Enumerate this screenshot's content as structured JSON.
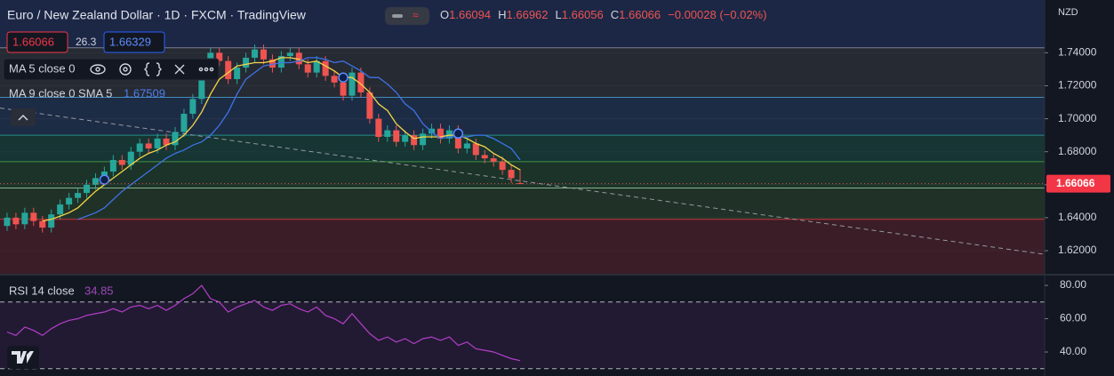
{
  "currency": "NZD",
  "toolbar": {
    "spread": 26.3,
    "ask": 1.66329
  },
  "chart_data": [
    {
      "type": "candlestick",
      "title": "Euro / New Zealand Dollar · 1D · FXCM · TradingView",
      "ohlc_labels": [
        "O",
        "H",
        "L",
        "C"
      ],
      "change": "−0.00028 (−0.02%)",
      "open": [
        1.635,
        1.64,
        1.636,
        1.643,
        1.638,
        1.634,
        1.642,
        1.648,
        1.652,
        1.655,
        1.66,
        1.664,
        1.668,
        1.675,
        1.672,
        1.68,
        1.685,
        1.682,
        1.688,
        1.684,
        1.692,
        1.703,
        1.712,
        1.728,
        1.74,
        1.735,
        1.724,
        1.731,
        1.737,
        1.742,
        1.736,
        1.731,
        1.738,
        1.74,
        1.733,
        1.728,
        1.735,
        1.726,
        1.722,
        1.714,
        1.728,
        1.716,
        1.7,
        1.689,
        1.693,
        1.686,
        1.69,
        1.684,
        1.691,
        1.694,
        1.688,
        1.693,
        1.682,
        1.685,
        1.678,
        1.676,
        1.674,
        1.669,
        1.66094
      ],
      "high": [
        1.643,
        1.643,
        1.646,
        1.646,
        1.641,
        1.645,
        1.651,
        1.655,
        1.658,
        1.663,
        1.667,
        1.671,
        1.678,
        1.678,
        1.683,
        1.688,
        1.688,
        1.691,
        1.691,
        1.695,
        1.706,
        1.715,
        1.731,
        1.743,
        1.743,
        1.738,
        1.734,
        1.74,
        1.745,
        1.745,
        1.739,
        1.741,
        1.743,
        1.743,
        1.736,
        1.738,
        1.738,
        1.729,
        1.725,
        1.731,
        1.731,
        1.719,
        1.703,
        1.696,
        1.696,
        1.693,
        1.693,
        1.694,
        1.697,
        1.697,
        1.696,
        1.696,
        1.688,
        1.688,
        1.681,
        1.679,
        1.677,
        1.672,
        1.66962
      ],
      "low": [
        1.632,
        1.633,
        1.633,
        1.635,
        1.631,
        1.631,
        1.639,
        1.645,
        1.649,
        1.652,
        1.657,
        1.661,
        1.665,
        1.669,
        1.669,
        1.677,
        1.679,
        1.679,
        1.681,
        1.681,
        1.689,
        1.7,
        1.709,
        1.725,
        1.732,
        1.721,
        1.721,
        1.728,
        1.734,
        1.733,
        1.728,
        1.728,
        1.735,
        1.73,
        1.725,
        1.725,
        1.723,
        1.719,
        1.711,
        1.711,
        1.713,
        1.697,
        1.686,
        1.686,
        1.683,
        1.683,
        1.681,
        1.681,
        1.688,
        1.685,
        1.685,
        1.679,
        1.679,
        1.675,
        1.673,
        1.671,
        1.666,
        1.661,
        1.66056
      ],
      "close": [
        1.64,
        1.636,
        1.643,
        1.638,
        1.634,
        1.642,
        1.648,
        1.652,
        1.655,
        1.66,
        1.664,
        1.668,
        1.675,
        1.672,
        1.68,
        1.685,
        1.682,
        1.688,
        1.684,
        1.692,
        1.703,
        1.712,
        1.728,
        1.74,
        1.735,
        1.724,
        1.731,
        1.737,
        1.742,
        1.736,
        1.731,
        1.738,
        1.74,
        1.733,
        1.728,
        1.735,
        1.726,
        1.722,
        1.714,
        1.728,
        1.716,
        1.7,
        1.689,
        1.693,
        1.686,
        1.69,
        1.684,
        1.691,
        1.694,
        1.688,
        1.693,
        1.682,
        1.685,
        1.678,
        1.676,
        1.674,
        1.669,
        1.664,
        1.66066
      ],
      "up_color": "#26a69a",
      "down_color": "#ef5350",
      "series": [
        {
          "name": "MA 5 close 0",
          "color": "#f5d547",
          "values": [
            null,
            null,
            null,
            null,
            1.638,
            1.639,
            1.641,
            1.643,
            1.646,
            1.651,
            1.656,
            1.66,
            1.664,
            1.668,
            1.672,
            1.676,
            1.679,
            1.681,
            1.684,
            1.686,
            1.69,
            1.696,
            1.704,
            1.715,
            1.724,
            1.728,
            1.732,
            1.733,
            1.734,
            1.734,
            1.735,
            1.737,
            1.737,
            1.736,
            1.734,
            1.735,
            1.732,
            1.729,
            1.725,
            1.725,
            1.721,
            1.716,
            1.709,
            1.705,
            1.697,
            1.692,
            1.688,
            1.689,
            1.689,
            1.689,
            1.69,
            1.69,
            1.688,
            1.685,
            1.683,
            1.679,
            1.676,
            1.672,
            1.669
          ]
        },
        {
          "name": "MA 9 close 0 SMA 5",
          "color": "#3d73e6",
          "values": [
            null,
            null,
            null,
            null,
            null,
            null,
            null,
            null,
            1.639,
            1.641,
            1.643,
            1.646,
            1.651,
            1.656,
            1.66,
            1.664,
            1.668,
            1.672,
            1.676,
            1.679,
            1.681,
            1.684,
            1.686,
            1.69,
            1.696,
            1.704,
            1.715,
            1.724,
            1.728,
            1.732,
            1.733,
            1.734,
            1.734,
            1.735,
            1.737,
            1.737,
            1.736,
            1.734,
            1.735,
            1.732,
            1.729,
            1.725,
            1.725,
            1.721,
            1.716,
            1.709,
            1.705,
            1.697,
            1.692,
            1.688,
            1.689,
            1.689,
            1.689,
            1.69,
            1.69,
            1.688,
            1.685,
            1.682,
            1.67509
          ]
        }
      ],
      "markers": {
        "x": [
          11,
          38,
          51
        ],
        "values": [
          1.663,
          1.725,
          1.691
        ]
      },
      "trendline": {
        "x": [
          -0.8,
          117.3
        ],
        "values": [
          1.7065,
          1.6178
        ]
      },
      "levels": [
        {
          "value": 1.743,
          "color": "#9598a1"
        },
        {
          "value": 1.713,
          "color": "#4fa3d8"
        },
        {
          "value": 1.69,
          "color": "#26a69a"
        },
        {
          "value": 1.674,
          "color": "#4caf50"
        },
        {
          "value": 1.658,
          "color": "#a5d6a7"
        },
        {
          "value": 1.639,
          "color": "#f23645"
        }
      ],
      "band_colors": [
        "#1c2746",
        "#262a33",
        "#1d2c45",
        "#163533",
        "#1b3329",
        "#203227",
        "#3a1d27"
      ],
      "xlim": [
        -0.8,
        117.3
      ],
      "ylim": [
        1.606,
        1.772
      ],
      "yticks": [
        {
          "value": 1.74,
          "label": "1.74000"
        },
        {
          "value": 1.72,
          "label": "1.72000"
        },
        {
          "value": 1.7,
          "label": "1.70000"
        },
        {
          "value": 1.68,
          "label": "1.68000"
        },
        {
          "value": 1.66,
          "label": "1.66000"
        },
        {
          "value": 1.64,
          "label": "1.64000"
        },
        {
          "value": 1.62,
          "label": "1.62000"
        }
      ]
    },
    {
      "type": "line",
      "series": [
        {
          "name": "RSI 14 close",
          "color": "#b23fc7",
          "values": [
            52,
            50,
            55,
            53,
            50,
            54,
            57,
            59,
            60,
            62,
            63,
            64,
            66,
            64,
            67,
            68,
            66,
            68,
            65,
            68,
            72,
            75,
            80,
            72,
            70,
            64,
            67,
            69,
            71,
            67,
            65,
            68,
            69,
            66,
            64,
            67,
            62,
            60,
            57,
            63,
            57,
            51,
            47,
            49,
            46,
            48,
            45,
            48,
            49,
            47,
            49,
            44,
            46,
            42,
            41,
            40,
            38,
            36,
            34.85
          ]
        }
      ],
      "levels": [
        70,
        30
      ],
      "band_color": "#221a33",
      "xlim": [
        -0.8,
        117.3
      ],
      "ylim": [
        25.6,
        85.9
      ],
      "yticks": [
        {
          "value": 80,
          "label": "80.00"
        },
        {
          "value": 60,
          "label": "60.00"
        },
        {
          "value": 40,
          "label": "40.00"
        }
      ]
    }
  ]
}
